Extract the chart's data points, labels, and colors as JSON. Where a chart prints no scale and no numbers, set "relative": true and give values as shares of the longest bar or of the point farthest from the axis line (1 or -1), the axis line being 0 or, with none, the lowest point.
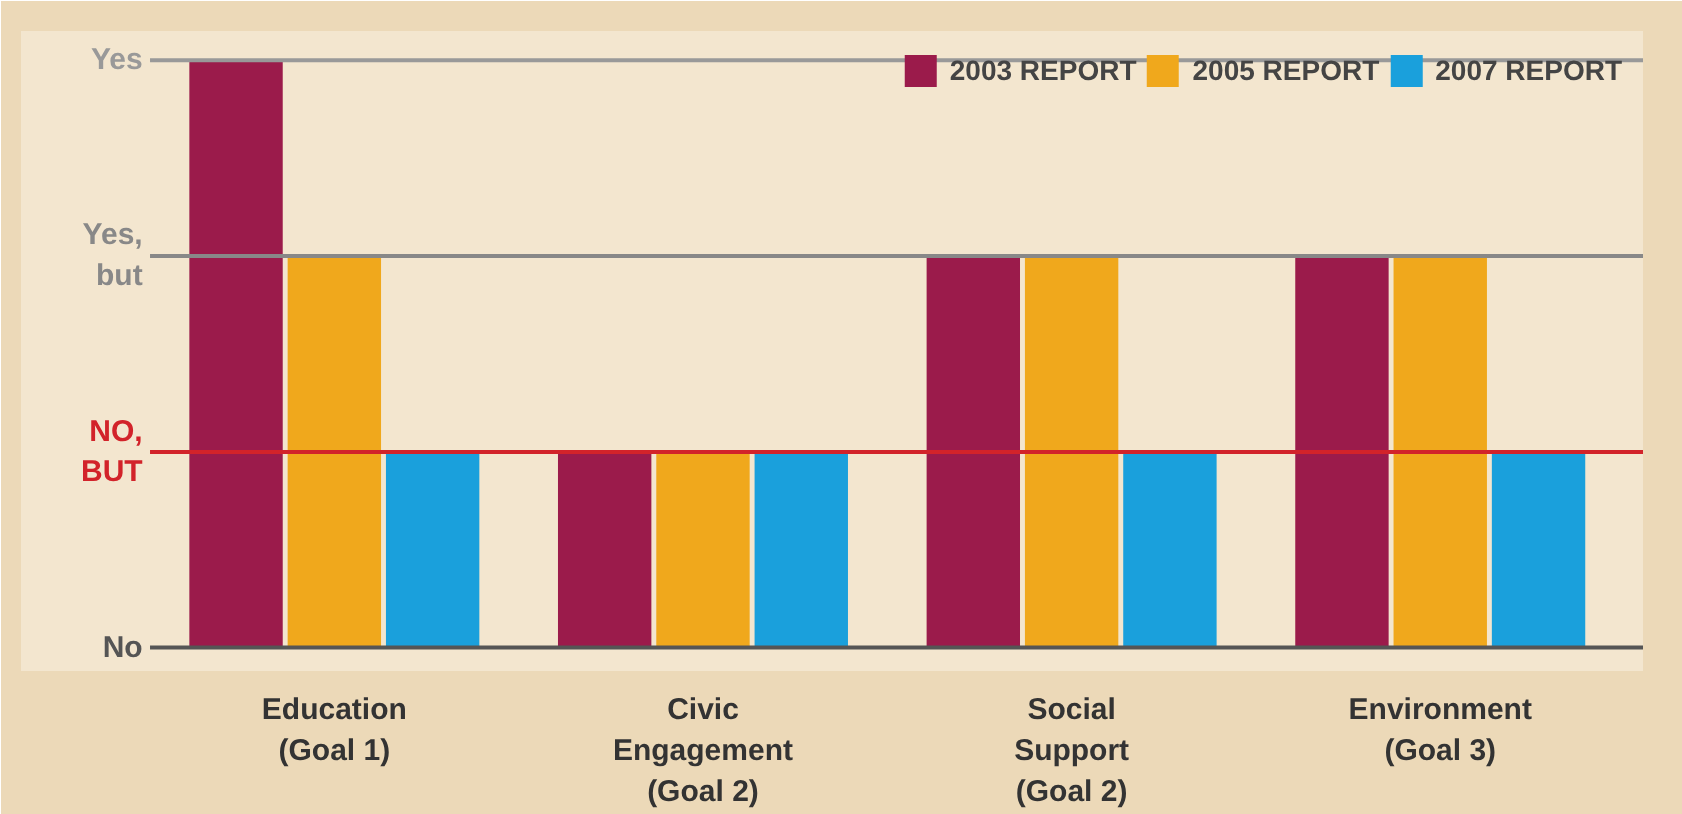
{
  "chart_data": {
    "type": "bar",
    "relative": true,
    "categories": [
      "Education (Goal 1)",
      "Civic Engagement (Goal 2)",
      "Social Support (Goal 2)",
      "Environment (Goal 3)"
    ],
    "series": [
      {
        "name": "2003 REPORT",
        "color": "#9b1b4b",
        "values": [
          1,
          0.333,
          0.667,
          0.667
        ]
      },
      {
        "name": "2005 REPORT",
        "color": "#f0a81c",
        "values": [
          0.667,
          0.333,
          0.667,
          0.667
        ]
      },
      {
        "name": "2007 REPORT",
        "color": "#1aa0dc",
        "values": [
          0.333,
          0.333,
          0.333,
          0.333
        ]
      }
    ],
    "ref_lines": [
      {
        "axis": "y",
        "value": 0,
        "label": "No",
        "color": "#555555"
      },
      {
        "axis": "y",
        "value": 0.333,
        "label": "NO, BUT",
        "color": "#d2232a"
      },
      {
        "axis": "y",
        "value": 0.667,
        "label": "Yes, but",
        "color": "#888888"
      },
      {
        "axis": "y",
        "value": 1,
        "label": "Yes",
        "color": "#999999"
      }
    ],
    "legend": "top right"
  }
}
